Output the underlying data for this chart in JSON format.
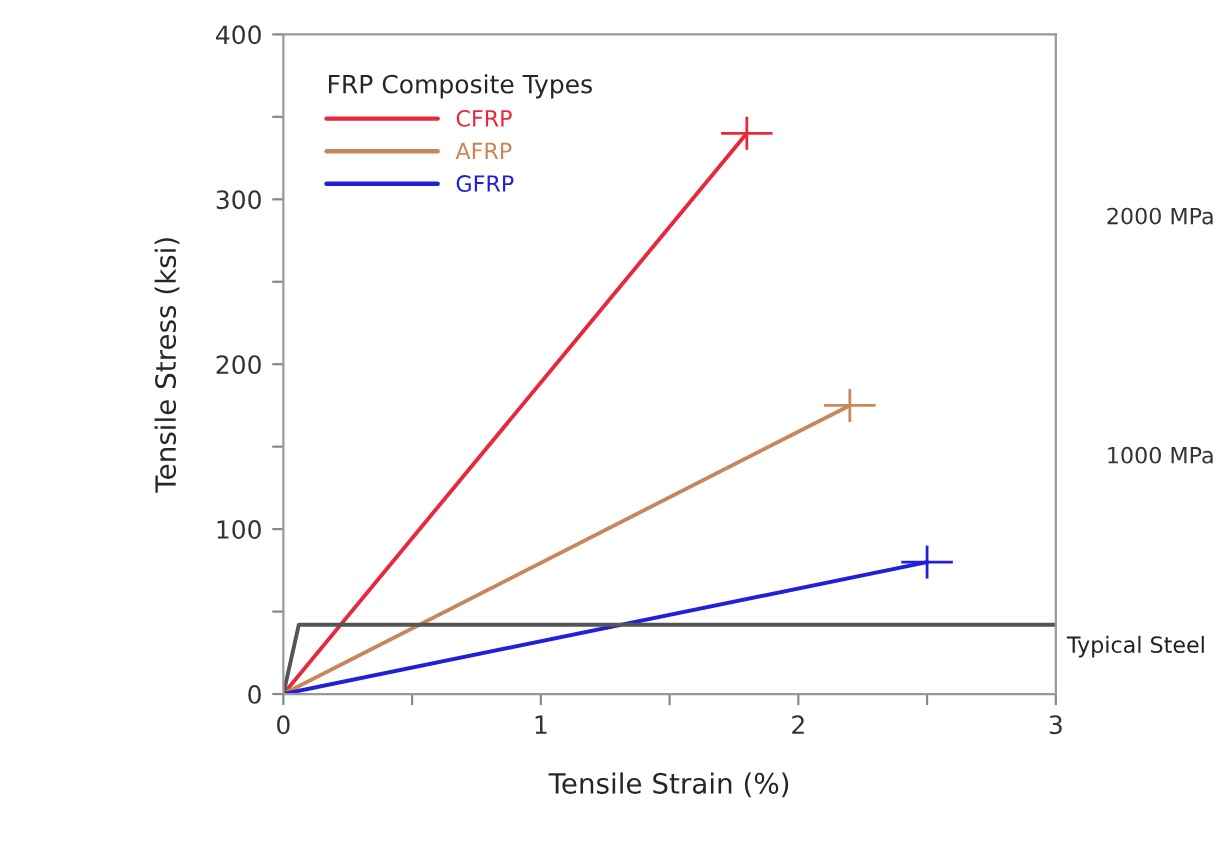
{
  "chart_data": {
    "type": "line",
    "xlabel": "Tensile Strain (%)",
    "ylabel": "Tensile Stress (ksi)",
    "legend_title": "FRP Composite Types",
    "xlim": [
      0,
      3
    ],
    "ylim": [
      0,
      400
    ],
    "xticks": [
      0,
      {
        "value": 0.5,
        "label": null
      },
      1,
      {
        "value": 1.5,
        "label": null
      },
      2,
      {
        "value": 2.5,
        "label": null
      },
      3
    ],
    "yticks": [
      0,
      {
        "value": 50,
        "label": null
      },
      100,
      {
        "value": 150,
        "label": null
      },
      200,
      {
        "value": 250,
        "label": null
      },
      300,
      {
        "value": 350,
        "label": null
      },
      400
    ],
    "y2lim": [
      0,
      2758
    ],
    "y2ticks": [
      {
        "value": 1000,
        "label": "1000 MPa"
      },
      {
        "value": 2000,
        "label": "2000 MPa"
      }
    ],
    "series": [
      {
        "name": "CFRP",
        "color": "#e8283c",
        "x": [
          0,
          1.8
        ],
        "values": [
          0,
          340
        ],
        "errors": [
          null,
          10
        ],
        "xerrors": [
          null,
          0.1
        ]
      },
      {
        "name": "AFRP",
        "color": "#c8875a",
        "x": [
          0,
          2.2
        ],
        "values": [
          0,
          175
        ],
        "errors": [
          null,
          10
        ],
        "xerrors": [
          null,
          0.1
        ]
      },
      {
        "name": "GFRP",
        "color": "#2020d8",
        "x": [
          0,
          2.5
        ],
        "values": [
          0,
          80
        ],
        "errors": [
          null,
          10
        ],
        "xerrors": [
          null,
          0.1
        ]
      },
      {
        "color": "#555555",
        "x": [
          0,
          0.06,
          3
        ],
        "values": [
          0,
          42,
          42
        ]
      }
    ],
    "annotations": [
      {
        "text": "Typical Steel",
        "x": 3,
        "y": 42
      }
    ],
    "legend": "top left",
    "grid": false,
    "marker": "none",
    "line_style": "solid"
  }
}
